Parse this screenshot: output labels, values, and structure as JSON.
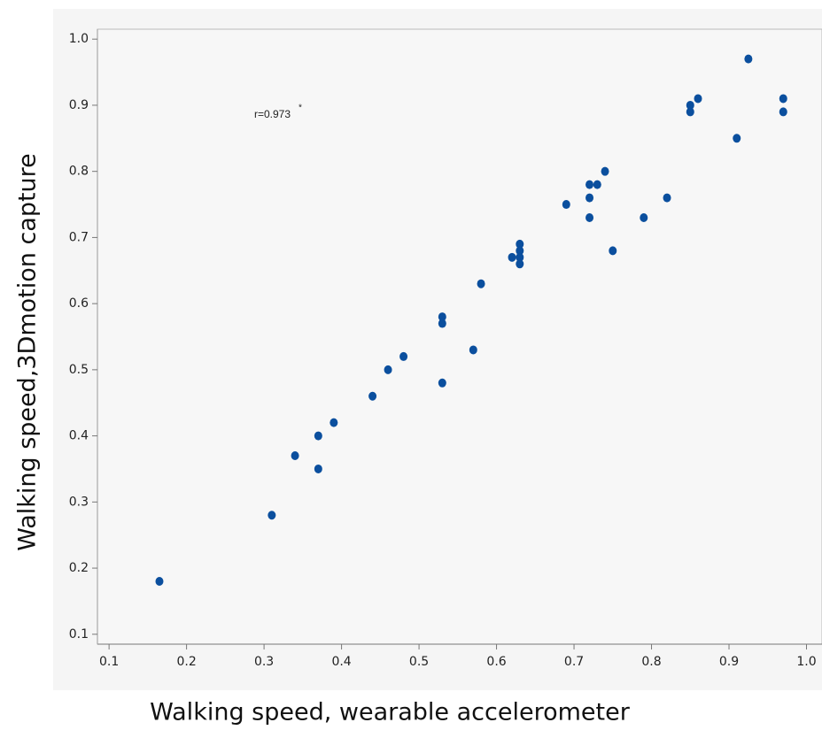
{
  "chart_data": {
    "type": "scatter",
    "x_label": "Walking speed, wearable accelerometer",
    "y_label": "Walking speed,3Dmotion capture",
    "annotation": "r=0.973",
    "annotation_mark": "*",
    "color": "#0b4f9e",
    "xlim": [
      0.085,
      1.02
    ],
    "ylim": [
      0.085,
      1.015
    ],
    "xticks": [
      0.1,
      0.2,
      0.3,
      0.4,
      0.5,
      0.6,
      0.7,
      0.8,
      0.9,
      {
        "value": 1,
        "label": "1.0"
      }
    ],
    "yticks": [
      0.1,
      0.2,
      0.3,
      0.4,
      0.5,
      0.6,
      0.7,
      0.8,
      0.9,
      {
        "value": 1,
        "label": "1.0"
      }
    ],
    "x": [
      0.165,
      0.31,
      0.34,
      0.37,
      0.37,
      0.39,
      0.44,
      0.46,
      0.48,
      0.53,
      0.53,
      0.53,
      0.57,
      0.58,
      0.62,
      0.63,
      0.63,
      0.63,
      0.63,
      0.69,
      0.72,
      0.72,
      0.72,
      0.73,
      0.74,
      0.75,
      0.79,
      0.82,
      0.85,
      0.85,
      0.86,
      0.91,
      0.925,
      0.97,
      0.97
    ],
    "values": [
      0.18,
      0.28,
      0.37,
      0.4,
      0.35,
      0.42,
      0.46,
      0.5,
      0.52,
      0.58,
      0.57,
      0.48,
      0.53,
      0.63,
      0.67,
      0.69,
      0.68,
      0.67,
      0.66,
      0.75,
      0.78,
      0.76,
      0.73,
      0.78,
      0.8,
      0.68,
      0.73,
      0.76,
      0.9,
      0.89,
      0.91,
      0.85,
      0.97,
      0.91,
      0.89
    ]
  }
}
